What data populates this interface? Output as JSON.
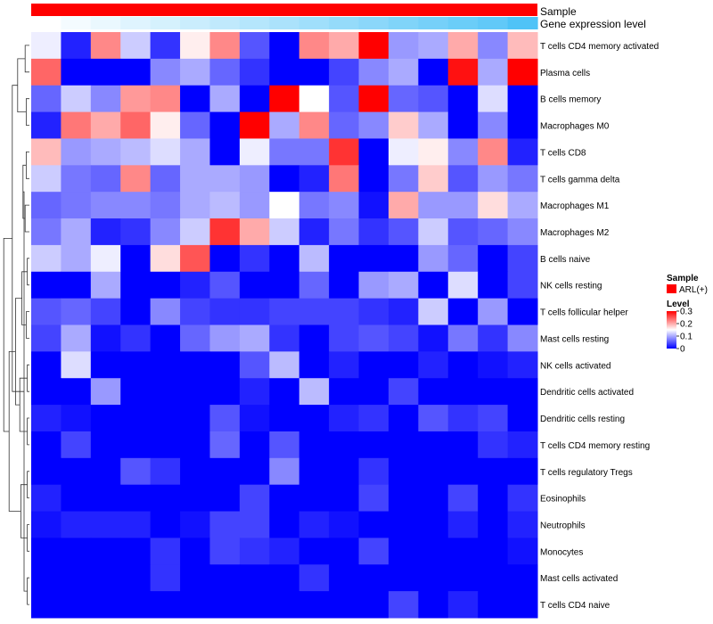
{
  "chart_data": {
    "type": "heatmap",
    "annotation_tracks": [
      {
        "label": "Sample",
        "color": "#ff0000"
      },
      {
        "label": "Gene expression level",
        "color_scale": [
          "#ffffff",
          "#4fc3f7"
        ]
      }
    ],
    "rows": [
      "T cells CD4 memory activated",
      "Plasma cells",
      "B cells memory",
      "Macrophages M0",
      "T cells CD8",
      "T cells gamma delta",
      "Macrophages M1",
      "Macrophages M2",
      "B cells naive",
      "NK cells resting",
      "T cells follicular helper",
      "Mast cells resting",
      "NK cells activated",
      "Dendritic cells activated",
      "Dendritic cells resting",
      "T cells CD4 memory resting",
      "T cells regulatory  Tregs",
      "Eosinophils",
      "Neutrophils",
      "Monocytes",
      "Mast cells activated",
      "T cells CD4 naive"
    ],
    "values": [
      [
        0.14,
        0.02,
        0.22,
        0.12,
        0.03,
        0.16,
        0.22,
        0.05,
        0.0,
        0.22,
        0.2,
        0.3,
        0.09,
        0.1,
        0.2,
        0.08,
        0.19
      ],
      [
        0.24,
        0.0,
        0.0,
        0.0,
        0.08,
        0.1,
        0.06,
        0.03,
        0.0,
        0.0,
        0.04,
        0.08,
        0.1,
        0.0,
        0.29,
        0.1,
        0.3
      ],
      [
        0.06,
        0.12,
        0.08,
        0.21,
        0.22,
        0.0,
        0.1,
        0.0,
        0.3,
        0.15,
        0.05,
        0.3,
        0.06,
        0.05,
        0.0,
        0.13,
        0.0
      ],
      [
        0.02,
        0.23,
        0.2,
        0.24,
        0.16,
        0.06,
        0.0,
        0.3,
        0.1,
        0.22,
        0.06,
        0.08,
        0.18,
        0.1,
        0.0,
        0.08,
        0.0
      ],
      [
        0.19,
        0.09,
        0.1,
        0.11,
        0.13,
        0.1,
        0.0,
        0.14,
        0.07,
        0.07,
        0.27,
        0.0,
        0.14,
        0.16,
        0.08,
        0.22,
        0.02
      ],
      [
        0.12,
        0.07,
        0.06,
        0.22,
        0.06,
        0.1,
        0.1,
        0.09,
        0.0,
        0.02,
        0.23,
        0.0,
        0.07,
        0.18,
        0.05,
        0.09,
        0.07
      ],
      [
        0.06,
        0.07,
        0.08,
        0.08,
        0.07,
        0.1,
        0.11,
        0.09,
        0.15,
        0.07,
        0.08,
        0.01,
        0.2,
        0.09,
        0.09,
        0.17,
        0.1
      ],
      [
        0.07,
        0.1,
        0.02,
        0.03,
        0.08,
        0.12,
        0.27,
        0.2,
        0.12,
        0.02,
        0.07,
        0.03,
        0.05,
        0.12,
        0.05,
        0.06,
        0.08
      ],
      [
        0.12,
        0.1,
        0.14,
        0.0,
        0.17,
        0.25,
        0.0,
        0.03,
        0.0,
        0.11,
        0.0,
        0.0,
        0.0,
        0.09,
        0.06,
        0.0,
        0.04
      ],
      [
        0.0,
        0.0,
        0.1,
        0.0,
        0.0,
        0.02,
        0.05,
        0.0,
        0.0,
        0.06,
        0.0,
        0.09,
        0.1,
        0.0,
        0.13,
        0.0,
        0.04
      ],
      [
        0.05,
        0.06,
        0.04,
        0.0,
        0.08,
        0.04,
        0.03,
        0.03,
        0.04,
        0.04,
        0.04,
        0.03,
        0.02,
        0.12,
        0.0,
        0.09,
        0.0
      ],
      [
        0.04,
        0.1,
        0.01,
        0.03,
        0.0,
        0.06,
        0.09,
        0.1,
        0.03,
        0.0,
        0.04,
        0.05,
        0.04,
        0.01,
        0.07,
        0.03,
        0.08
      ],
      [
        0.0,
        0.13,
        0.0,
        0.0,
        0.0,
        0.0,
        0.0,
        0.05,
        0.11,
        0.0,
        0.02,
        0.0,
        0.0,
        0.02,
        0.0,
        0.01,
        0.02
      ],
      [
        0.0,
        0.0,
        0.09,
        0.0,
        0.0,
        0.0,
        0.0,
        0.02,
        0.0,
        0.11,
        0.0,
        0.0,
        0.04,
        0.0,
        0.0,
        0.0,
        0.0
      ],
      [
        0.02,
        0.01,
        0.0,
        0.0,
        0.0,
        0.0,
        0.05,
        0.01,
        0.0,
        0.0,
        0.02,
        0.03,
        0.0,
        0.05,
        0.03,
        0.04,
        0.0
      ],
      [
        0.0,
        0.04,
        0.0,
        0.0,
        0.0,
        0.0,
        0.06,
        0.0,
        0.05,
        0.0,
        0.0,
        0.0,
        0.0,
        0.0,
        0.0,
        0.03,
        0.02
      ],
      [
        0.0,
        0.0,
        0.0,
        0.05,
        0.03,
        0.0,
        0.0,
        0.0,
        0.08,
        0.0,
        0.0,
        0.03,
        0.0,
        0.0,
        0.0,
        0.0,
        0.0
      ],
      [
        0.02,
        0.0,
        0.0,
        0.0,
        0.0,
        0.0,
        0.0,
        0.04,
        0.0,
        0.0,
        0.0,
        0.04,
        0.0,
        0.0,
        0.04,
        0.0,
        0.03
      ],
      [
        0.01,
        0.02,
        0.02,
        0.02,
        0.0,
        0.01,
        0.04,
        0.04,
        0.0,
        0.02,
        0.01,
        0.0,
        0.0,
        0.0,
        0.02,
        0.0,
        0.02
      ],
      [
        0.0,
        0.0,
        0.0,
        0.0,
        0.03,
        0.0,
        0.04,
        0.03,
        0.02,
        0.0,
        0.0,
        0.04,
        0.0,
        0.0,
        0.0,
        0.0,
        0.01
      ],
      [
        0.0,
        0.0,
        0.0,
        0.0,
        0.03,
        0.0,
        0.0,
        0.0,
        0.0,
        0.03,
        0.0,
        0.0,
        0.0,
        0.0,
        0.0,
        0.0,
        0.0
      ],
      [
        0.0,
        0.0,
        0.0,
        0.0,
        0.0,
        0.0,
        0.0,
        0.0,
        0.0,
        0.0,
        0.0,
        0.0,
        0.04,
        0.0,
        0.02,
        0.0,
        0.0
      ]
    ],
    "gene_expression_level": [
      0.0,
      0.06,
      0.12,
      0.18,
      0.24,
      0.3,
      0.36,
      0.42,
      0.48,
      0.54,
      0.6,
      0.66,
      0.72,
      0.78,
      0.84,
      0.9,
      1.0
    ],
    "color_scale": {
      "min": 0,
      "mid": 0.15,
      "max": 0.3,
      "colors": [
        "#0000ff",
        "#ffffff",
        "#ff0000"
      ]
    },
    "legend": {
      "sample_title": "Sample",
      "sample_entry": "ARL(+)",
      "sample_color": "#ff0000",
      "level_title": "Level",
      "level_ticks": [
        {
          "label": "0.3",
          "value": 0.3
        },
        {
          "label": "0.2",
          "value": 0.2
        },
        {
          "label": "0.1",
          "value": 0.1
        },
        {
          "label": "0",
          "value": 0
        }
      ],
      "placement": "right"
    },
    "dendrogram": "rows"
  }
}
